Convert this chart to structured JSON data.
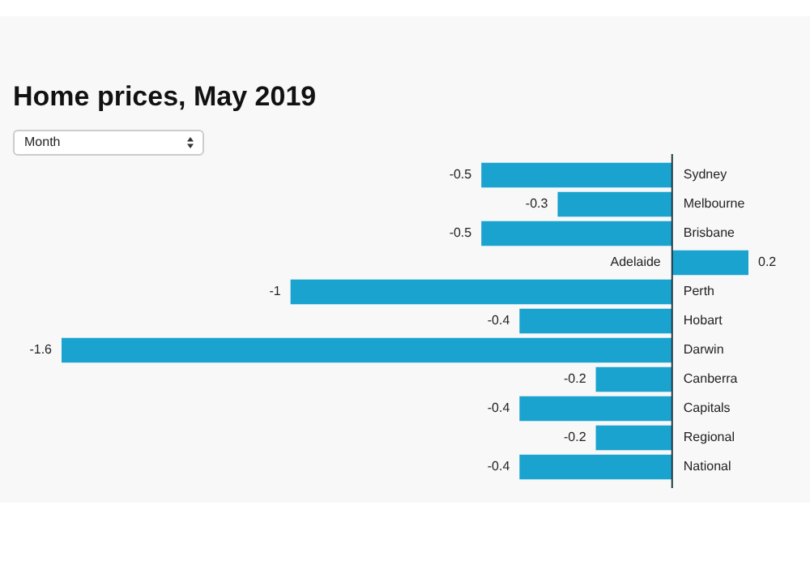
{
  "chart_data": {
    "type": "bar",
    "orientation": "horizontal",
    "title": "Home prices, May 2019",
    "annotations": [
      "Month"
    ],
    "categories": [
      "Sydney",
      "Melbourne",
      "Brisbane",
      "Adelaide",
      "Perth",
      "Hobart",
      "Darwin",
      "Canberra",
      "Capitals",
      "Regional",
      "National"
    ],
    "values": [
      -0.5,
      -0.3,
      -0.5,
      0.2,
      -1.0,
      -0.4,
      -1.6,
      -0.2,
      -0.4,
      -0.2,
      -0.4
    ],
    "color": "#1ba3cf",
    "xlim": [
      -1.6,
      0.2
    ],
    "tick_labels": false,
    "data_labels": true
  }
}
